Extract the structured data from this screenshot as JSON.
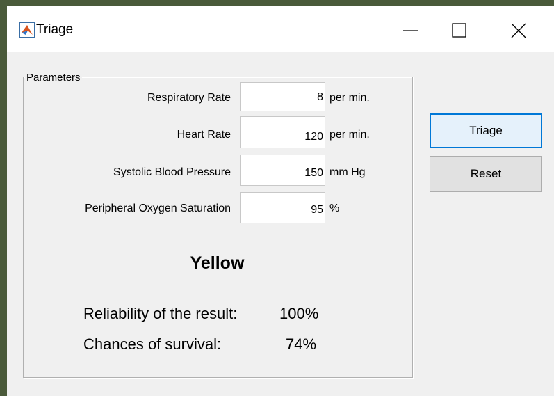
{
  "window": {
    "title": "Triage"
  },
  "panel": {
    "title": "Parameters",
    "fields": [
      {
        "label": "Respiratory Rate",
        "value": "8",
        "unit": "per min."
      },
      {
        "label": "Heart Rate",
        "value": "120",
        "unit": "per min."
      },
      {
        "label": "Systolic Blood Pressure",
        "value": "150",
        "unit": "mm Hg"
      },
      {
        "label": "Peripheral Oxygen Saturation",
        "value": "95",
        "unit": "%"
      }
    ],
    "result": "Yellow",
    "reliability": {
      "label": "Reliability of the result:",
      "value": "100%"
    },
    "survival": {
      "label": "Chances of survival:",
      "value": "74%"
    }
  },
  "buttons": [
    "Triage",
    "Reset"
  ]
}
